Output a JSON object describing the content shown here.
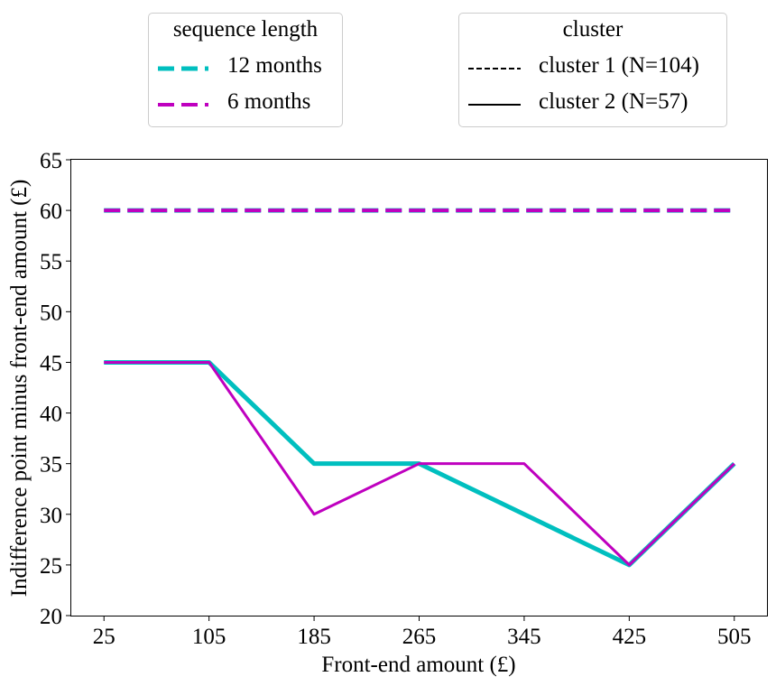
{
  "chart_data": {
    "type": "line",
    "xlabel": "Front-end amount (£)",
    "ylabel": "Indifference point minus front-end amount (£)",
    "x": [
      25,
      105,
      185,
      265,
      345,
      425,
      505
    ],
    "x_tick_labels": [
      "25",
      "105",
      "185",
      "265",
      "345",
      "425",
      "505"
    ],
    "y_tick_labels": [
      "20",
      "25",
      "30",
      "35",
      "40",
      "45",
      "50",
      "55",
      "60",
      "65"
    ],
    "ylim": [
      20,
      65
    ],
    "grid": false,
    "series": [
      {
        "name": "12 months",
        "cluster": "cluster 1 (N=104)",
        "color": "#00bfbf",
        "linestyle": "dashed",
        "values": [
          60,
          60,
          60,
          60,
          60,
          60,
          60
        ]
      },
      {
        "name": "6 months",
        "cluster": "cluster 1 (N=104)",
        "color": "#bf00bf",
        "linestyle": "dashed",
        "values": [
          60,
          60,
          60,
          60,
          60,
          60,
          60
        ]
      },
      {
        "name": "12 months",
        "cluster": "cluster 2 (N=57)",
        "color": "#00bfbf",
        "linestyle": "solid",
        "values": [
          45,
          45,
          35,
          35,
          30,
          25,
          35
        ]
      },
      {
        "name": "6 months",
        "cluster": "cluster 2 (N=57)",
        "color": "#bf00bf",
        "linestyle": "solid",
        "values": [
          45,
          45,
          30,
          35,
          35,
          25,
          35
        ]
      }
    ],
    "legends": [
      {
        "title": "sequence length",
        "placement": "top-left",
        "entries": [
          {
            "label": "12 months",
            "color": "#00bfbf",
            "style": "dashed"
          },
          {
            "label": "6 months",
            "color": "#bf00bf",
            "style": "dashed"
          }
        ]
      },
      {
        "title": "cluster",
        "placement": "top-right",
        "entries": [
          {
            "label": "cluster 1 (N=104)",
            "color": "#000000",
            "style": "dashed"
          },
          {
            "label": "cluster 2 (N=57)",
            "color": "#000000",
            "style": "solid"
          }
        ]
      }
    ]
  }
}
